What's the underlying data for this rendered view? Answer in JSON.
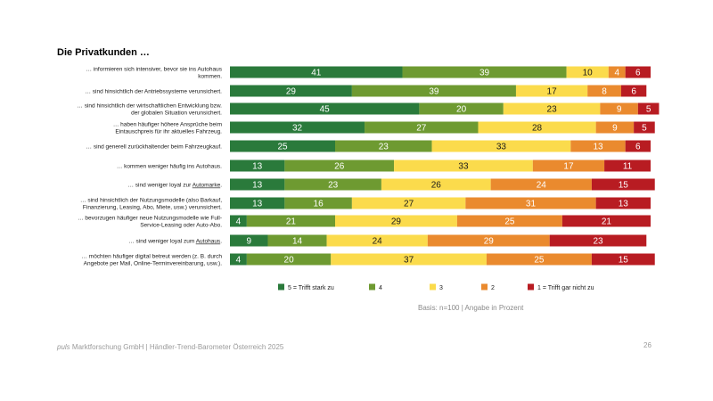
{
  "title": "Die Privatkunden …",
  "footer": {
    "brand": "puls",
    "text": " Marktforschung GmbH | Händler-Trend-Barometer Österreich 2025",
    "page": "26"
  },
  "basis": "Basis: n=100 | Angabe in Prozent",
  "colors": {
    "c5": "#2a7a3b",
    "c4": "#6e9a31",
    "c3": "#fbdb4c",
    "c2": "#ea8a2e",
    "c1": "#b81c22"
  },
  "chart_data": {
    "type": "bar",
    "orientation": "horizontal",
    "stacked": true,
    "unit": "Prozent",
    "legend_position": "bottom",
    "categories": [
      {
        "lines": [
          "… informieren sich intensiver, bevor sie ins Autohaus",
          "kommen."
        ],
        "underline": null
      },
      {
        "lines": [
          "… sind hinsichtlich der Antriebssysteme verunsichert."
        ],
        "underline": null
      },
      {
        "lines": [
          "… sind hinsichtlich der wirtschaftlichen Entwicklung bzw.",
          "der globalen Situation verunsichert."
        ],
        "underline": null
      },
      {
        "lines": [
          "… haben häufiger höhere Ansprüche beim",
          "Eintauschpreis für ihr aktuelles Fahrzeug."
        ],
        "underline": null
      },
      {
        "lines": [
          "… sind generell zurückhaltender beim Fahrzeugkauf."
        ],
        "underline": null
      },
      {
        "lines": [
          "… kommen weniger häufig ins Autohaus."
        ],
        "underline": null
      },
      {
        "lines": [
          "… sind weniger loyal zur Automarke."
        ],
        "underline": "Automarke"
      },
      {
        "lines": [
          "… sind hinsichtlich der Nutzungsmodelle (also Barkauf,",
          "Finanzierung, Leasing, Abo, Miete, usw.) verunsichert."
        ],
        "underline": null
      },
      {
        "lines": [
          "… bevorzugen häufiger neue Nutzungsmodelle wie Full-",
          "Service-Leasing oder Auto-Abo."
        ],
        "underline": null
      },
      {
        "lines": [
          "… sind weniger loyal zum Autohaus."
        ],
        "underline": "Autohaus"
      },
      {
        "lines": [
          "… möchten häufiger digital betreut werden (z. B. durch",
          "Angebote per Mail, Online-Terminvereinbarung, usw.)."
        ],
        "underline": null
      }
    ],
    "series": [
      {
        "name": "5 = Trifft stark zu",
        "color_key": "c5",
        "values": [
          41,
          29,
          45,
          32,
          25,
          13,
          13,
          13,
          4,
          9,
          4
        ]
      },
      {
        "name": "4",
        "color_key": "c4",
        "values": [
          39,
          39,
          20,
          27,
          23,
          26,
          23,
          16,
          21,
          14,
          20
        ]
      },
      {
        "name": "3",
        "color_key": "c3",
        "values": [
          10,
          17,
          23,
          28,
          33,
          33,
          26,
          27,
          29,
          24,
          37
        ]
      },
      {
        "name": "2",
        "color_key": "c2",
        "values": [
          4,
          8,
          9,
          9,
          13,
          17,
          24,
          31,
          25,
          29,
          25
        ]
      },
      {
        "name": "1 = Trifft gar nicht zu",
        "color_key": "c1",
        "values": [
          6,
          6,
          5,
          5,
          6,
          11,
          15,
          13,
          21,
          23,
          15
        ]
      }
    ],
    "xlim": [
      0,
      100
    ],
    "grid": false
  }
}
